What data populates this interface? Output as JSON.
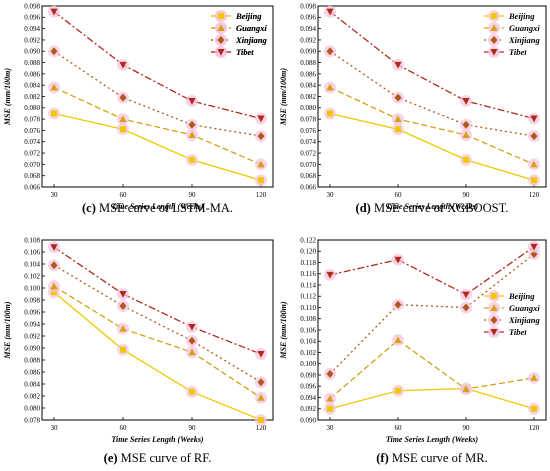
{
  "colors": {
    "Beijing": "#f0c800",
    "Guangxi": "#d4a017",
    "Xinjiang": "#b05a1a",
    "Tibet": "#b02a1a",
    "marker_halo": "#f6c6e0"
  },
  "chart_data": [
    {
      "type": "line",
      "caption_letter": "(c)",
      "caption_text": "MSE curve of LSTM-MA.",
      "xlabel": "Time Series Length (Weeks)",
      "ylabel": "MSE (mm/100m)",
      "categories": [
        "30",
        "60",
        "90",
        "120"
      ],
      "ylim": [
        0.066,
        0.098
      ],
      "yticks": [
        "0.066",
        "0.068",
        "0.070",
        "0.072",
        "0.074",
        "0.076",
        "0.078",
        "0.080",
        "0.082",
        "0.084",
        "0.086",
        "0.088",
        "0.090",
        "0.092",
        "0.094",
        "0.096",
        "0.098"
      ],
      "legend_position": "top-right",
      "series": [
        {
          "name": "Beijing",
          "values": [
            0.079,
            0.0762,
            0.0708,
            0.0672
          ]
        },
        {
          "name": "Guangxi",
          "values": [
            0.0836,
            0.078,
            0.0752,
            0.07
          ]
        },
        {
          "name": "Xinjiang",
          "values": [
            0.09,
            0.0818,
            0.077,
            0.075
          ]
        },
        {
          "name": "Tibet",
          "values": [
            0.097,
            0.0876,
            0.0812,
            0.0781
          ]
        }
      ]
    },
    {
      "type": "line",
      "caption_letter": "(d)",
      "caption_text": "MSE curve of XGBOOST.",
      "xlabel": "Time Series Length (Weeks)",
      "ylabel": "MSE (mm/100m)",
      "categories": [
        "30",
        "60",
        "90",
        "120"
      ],
      "ylim": [
        0.066,
        0.098
      ],
      "yticks": [
        "0.066",
        "0.068",
        "0.070",
        "0.072",
        "0.074",
        "0.076",
        "0.078",
        "0.080",
        "0.082",
        "0.084",
        "0.086",
        "0.088",
        "0.090",
        "0.092",
        "0.094",
        "0.096",
        "0.098"
      ],
      "legend_position": "top-right",
      "series": [
        {
          "name": "Beijing",
          "values": [
            0.079,
            0.0762,
            0.0708,
            0.0672
          ]
        },
        {
          "name": "Guangxi",
          "values": [
            0.0836,
            0.078,
            0.0752,
            0.07
          ]
        },
        {
          "name": "Xinjiang",
          "values": [
            0.09,
            0.0818,
            0.077,
            0.075
          ]
        },
        {
          "name": "Tibet",
          "values": [
            0.097,
            0.0876,
            0.0812,
            0.0781
          ]
        }
      ]
    },
    {
      "type": "line",
      "caption_letter": "(e)",
      "caption_text": "MSE curve of RF.",
      "xlabel": "Time Series Length (Weeks)",
      "ylabel": "MSE (mm/100m)",
      "categories": [
        "30",
        "60",
        "90",
        "120"
      ],
      "ylim": [
        0.078,
        0.108
      ],
      "yticks": [
        "0.078",
        "0.080",
        "0.082",
        "0.084",
        "0.086",
        "0.088",
        "0.090",
        "0.092",
        "0.094",
        "0.096",
        "0.098",
        "0.100",
        "0.102",
        "0.104",
        "0.106",
        "0.108"
      ],
      "legend_position": "top-right",
      "series": [
        {
          "name": "Beijing",
          "values": [
            0.0993,
            0.0897,
            0.0827,
            0.078
          ]
        },
        {
          "name": "Guangxi",
          "values": [
            0.1003,
            0.0932,
            0.0893,
            0.0817
          ]
        },
        {
          "name": "Xinjiang",
          "values": [
            0.1038,
            0.097,
            0.0912,
            0.0843
          ]
        },
        {
          "name": "Tibet",
          "values": [
            0.1068,
            0.099,
            0.0935,
            0.089
          ]
        }
      ]
    },
    {
      "type": "line",
      "caption_letter": "(f)",
      "caption_text": "MSE curve of MR.",
      "xlabel": "Time Series Length (Weeks)",
      "ylabel": "MSE (mm/100m)",
      "categories": [
        "30",
        "60",
        "90",
        "120"
      ],
      "ylim": [
        0.09,
        0.122
      ],
      "yticks": [
        "0.090",
        "0.092",
        "0.094",
        "0.096",
        "0.098",
        "0.100",
        "0.102",
        "0.104",
        "0.106",
        "0.108",
        "0.110",
        "0.112",
        "0.114",
        "0.116",
        "0.118",
        "0.120",
        "0.122"
      ],
      "legend_position": "center-right",
      "series": [
        {
          "name": "Beijing",
          "values": [
            0.092,
            0.0952,
            0.0956,
            0.092
          ]
        },
        {
          "name": "Guangxi",
          "values": [
            0.0938,
            0.1042,
            0.0955,
            0.0975
          ]
        },
        {
          "name": "Xinjiang",
          "values": [
            0.0982,
            0.1105,
            0.11,
            0.1195
          ]
        },
        {
          "name": "Tibet",
          "values": [
            0.1158,
            0.1185,
            0.1123,
            0.1208
          ]
        }
      ]
    }
  ]
}
